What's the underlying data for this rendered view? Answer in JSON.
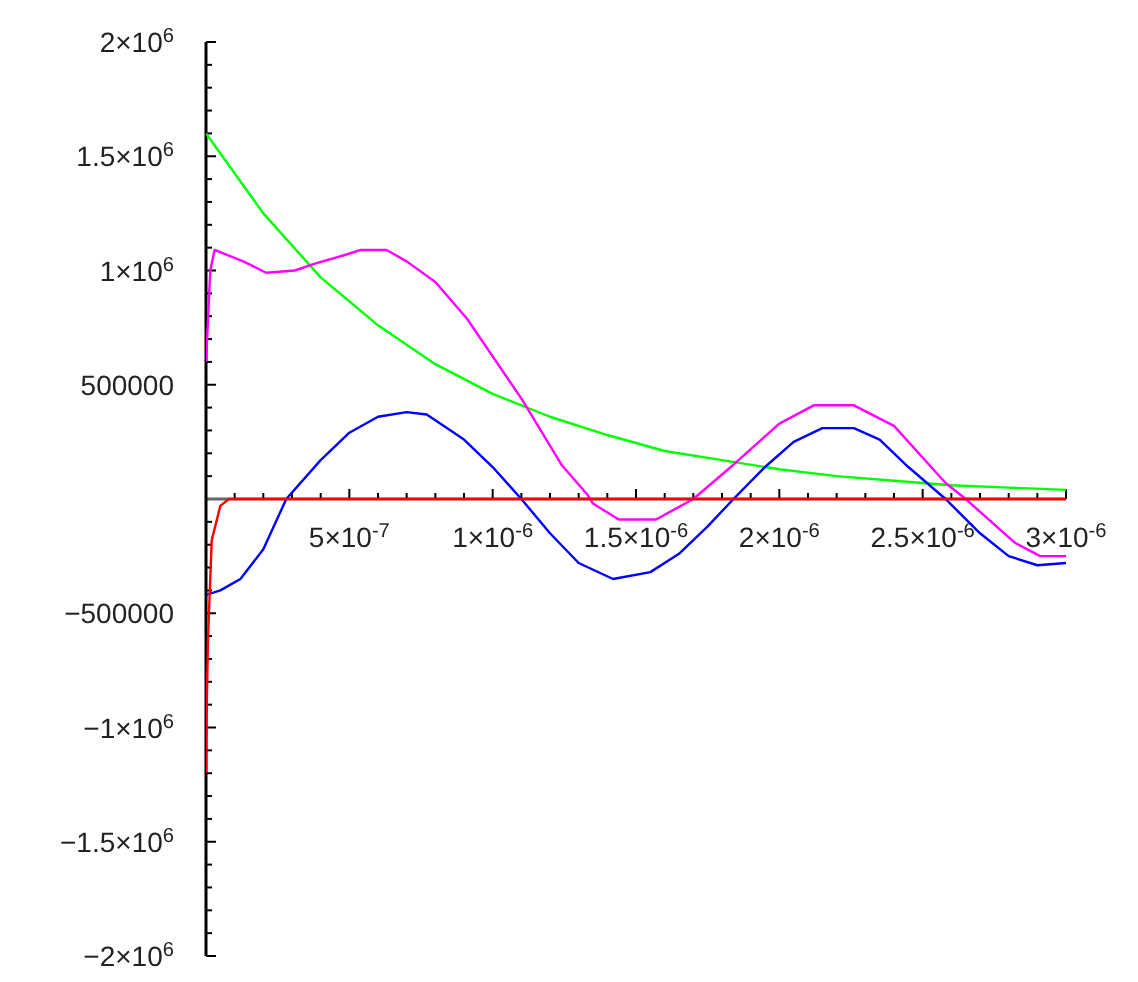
{
  "chart_data": {
    "type": "line",
    "xlim": [
      0,
      3e-06
    ],
    "ylim": [
      -2000000,
      2000000
    ],
    "xticks": [
      {
        "value": 1e-07,
        "label": null
      },
      {
        "value": 2e-07,
        "label": null
      },
      {
        "value": 3e-07,
        "label": null
      },
      {
        "value": 4e-07,
        "label": null
      },
      {
        "value": 5e-07,
        "label": "5×10$^{-7}$"
      },
      {
        "value": 6e-07,
        "label": null
      },
      {
        "value": 7e-07,
        "label": null
      },
      {
        "value": 8e-07,
        "label": null
      },
      {
        "value": 9e-07,
        "label": null
      },
      {
        "value": 1e-06,
        "label": "1×10$^{-6}$"
      },
      {
        "value": 1.1e-06,
        "label": null
      },
      {
        "value": 1.2e-06,
        "label": null
      },
      {
        "value": 1.3e-06,
        "label": null
      },
      {
        "value": 1.4e-06,
        "label": null
      },
      {
        "value": 1.5e-06,
        "label": "1.5×10$^{-6}$"
      },
      {
        "value": 1.6e-06,
        "label": null
      },
      {
        "value": 1.7e-06,
        "label": null
      },
      {
        "value": 1.8e-06,
        "label": null
      },
      {
        "value": 1.9e-06,
        "label": null
      },
      {
        "value": 2e-06,
        "label": "2×10$^{-6}$"
      },
      {
        "value": 2.1e-06,
        "label": null
      },
      {
        "value": 2.2e-06,
        "label": null
      },
      {
        "value": 2.3e-06,
        "label": null
      },
      {
        "value": 2.4e-06,
        "label": null
      },
      {
        "value": 2.5e-06,
        "label": "2.5×10$^{-6}$"
      },
      {
        "value": 2.6e-06,
        "label": null
      },
      {
        "value": 2.7e-06,
        "label": null
      },
      {
        "value": 2.8e-06,
        "label": null
      },
      {
        "value": 2.9e-06,
        "label": null
      },
      {
        "value": 3e-06,
        "label": "3×10$^{-6}$"
      }
    ],
    "yticks": [
      {
        "value": -2000000,
        "label": "−2×10$^{6}$"
      },
      {
        "value": -1900000,
        "label": null
      },
      {
        "value": -1800000,
        "label": null
      },
      {
        "value": -1700000,
        "label": null
      },
      {
        "value": -1600000,
        "label": null
      },
      {
        "value": -1500000,
        "label": "−1.5×10$^{6}$"
      },
      {
        "value": -1400000,
        "label": null
      },
      {
        "value": -1300000,
        "label": null
      },
      {
        "value": -1200000,
        "label": null
      },
      {
        "value": -1100000,
        "label": null
      },
      {
        "value": -1000000,
        "label": "−1×10$^{6}$"
      },
      {
        "value": -900000,
        "label": null
      },
      {
        "value": -800000,
        "label": null
      },
      {
        "value": -700000,
        "label": null
      },
      {
        "value": -600000,
        "label": null
      },
      {
        "value": -500000,
        "label": "−500000"
      },
      {
        "value": -400000,
        "label": null
      },
      {
        "value": -300000,
        "label": null
      },
      {
        "value": -200000,
        "label": null
      },
      {
        "value": -100000,
        "label": null
      },
      {
        "value": 100000,
        "label": null
      },
      {
        "value": 200000,
        "label": null
      },
      {
        "value": 300000,
        "label": null
      },
      {
        "value": 400000,
        "label": null
      },
      {
        "value": 500000,
        "label": "500000"
      },
      {
        "value": 600000,
        "label": null
      },
      {
        "value": 700000,
        "label": null
      },
      {
        "value": 800000,
        "label": null
      },
      {
        "value": 900000,
        "label": null
      },
      {
        "value": 1000000,
        "label": "1×10$^{6}$"
      },
      {
        "value": 1100000,
        "label": null
      },
      {
        "value": 1200000,
        "label": null
      },
      {
        "value": 1300000,
        "label": null
      },
      {
        "value": 1400000,
        "label": null
      },
      {
        "value": 1500000,
        "label": "1.5×10$^{6}$"
      },
      {
        "value": 1600000,
        "label": null
      },
      {
        "value": 1700000,
        "label": null
      },
      {
        "value": 1800000,
        "label": null
      },
      {
        "value": 1900000,
        "label": null
      },
      {
        "value": 2000000,
        "label": "2×10$^{6}$"
      }
    ],
    "grid": false,
    "legend": false,
    "marker": "none",
    "series": [
      {
        "color": "#00ff00",
        "x": [
          0,
          2e-07,
          4e-07,
          6e-07,
          8e-07,
          1e-06,
          1.2e-06,
          1.4e-06,
          1.6e-06,
          1.8e-06,
          2e-06,
          2.2e-06,
          2.4e-06,
          2.6e-06,
          2.8e-06,
          3e-06
        ],
        "values": [
          1600000,
          1250000,
          970000,
          760000,
          590000,
          460000,
          360000,
          280000,
          210000,
          170000,
          130000,
          100000,
          80000,
          60000,
          50000,
          40000
        ]
      },
      {
        "color": "#ff00ff",
        "x": [
          0,
          1.5e-08,
          3e-08,
          1.3e-07,
          2.1e-07,
          3.1e-07,
          3.8e-07,
          4.9e-07,
          5.4e-07,
          6.3e-07,
          7e-07,
          8e-07,
          9.1e-07,
          1.1e-06,
          1.24e-06,
          1.33e-06,
          1.35e-06,
          1.44e-06,
          1.57e-06,
          1.7e-06,
          1.84e-06,
          2e-06,
          2.12e-06,
          2.26e-06,
          2.4e-06,
          2.58e-06,
          2.65e-06,
          2.82e-06,
          2.91e-06,
          3e-06
        ],
        "values": [
          600000,
          1000000,
          1090000,
          1040000,
          990000,
          1000000,
          1030000,
          1070000,
          1090000,
          1090000,
          1040000,
          950000,
          790000,
          440000,
          150000,
          20000,
          -20000,
          -90000,
          -90000,
          0,
          150000,
          330000,
          410000,
          410000,
          320000,
          70000,
          0,
          -190000,
          -250000,
          -250000
        ]
      },
      {
        "color": "#0000ff",
        "x": [
          0,
          5e-08,
          1.2e-07,
          2e-07,
          2.8e-07,
          4e-07,
          5e-07,
          6e-07,
          7e-07,
          7.7e-07,
          9e-07,
          1e-06,
          1.1e-06,
          1.2e-06,
          1.3e-06,
          1.42e-06,
          1.55e-06,
          1.65e-06,
          1.75e-06,
          1.84e-06,
          1.95e-06,
          2.05e-06,
          2.15e-06,
          2.26e-06,
          2.35e-06,
          2.45e-06,
          2.58e-06,
          2.7e-06,
          2.8e-06,
          2.9e-06,
          3e-06
        ],
        "values": [
          -420000,
          -400000,
          -350000,
          -220000,
          0,
          170000,
          290000,
          360000,
          380000,
          370000,
          260000,
          140000,
          0,
          -150000,
          -280000,
          -350000,
          -320000,
          -240000,
          -120000,
          0,
          140000,
          250000,
          310000,
          310000,
          260000,
          140000,
          0,
          -150000,
          -250000,
          -290000,
          -280000
        ]
      },
      {
        "color": "#ff0000",
        "x": [
          0,
          3e-09,
          7e-09,
          2e-08,
          5e-08,
          8e-08,
          3e-06
        ],
        "values": [
          -1200000,
          -880000,
          -610000,
          -180000,
          -30000,
          0,
          0
        ]
      }
    ]
  }
}
